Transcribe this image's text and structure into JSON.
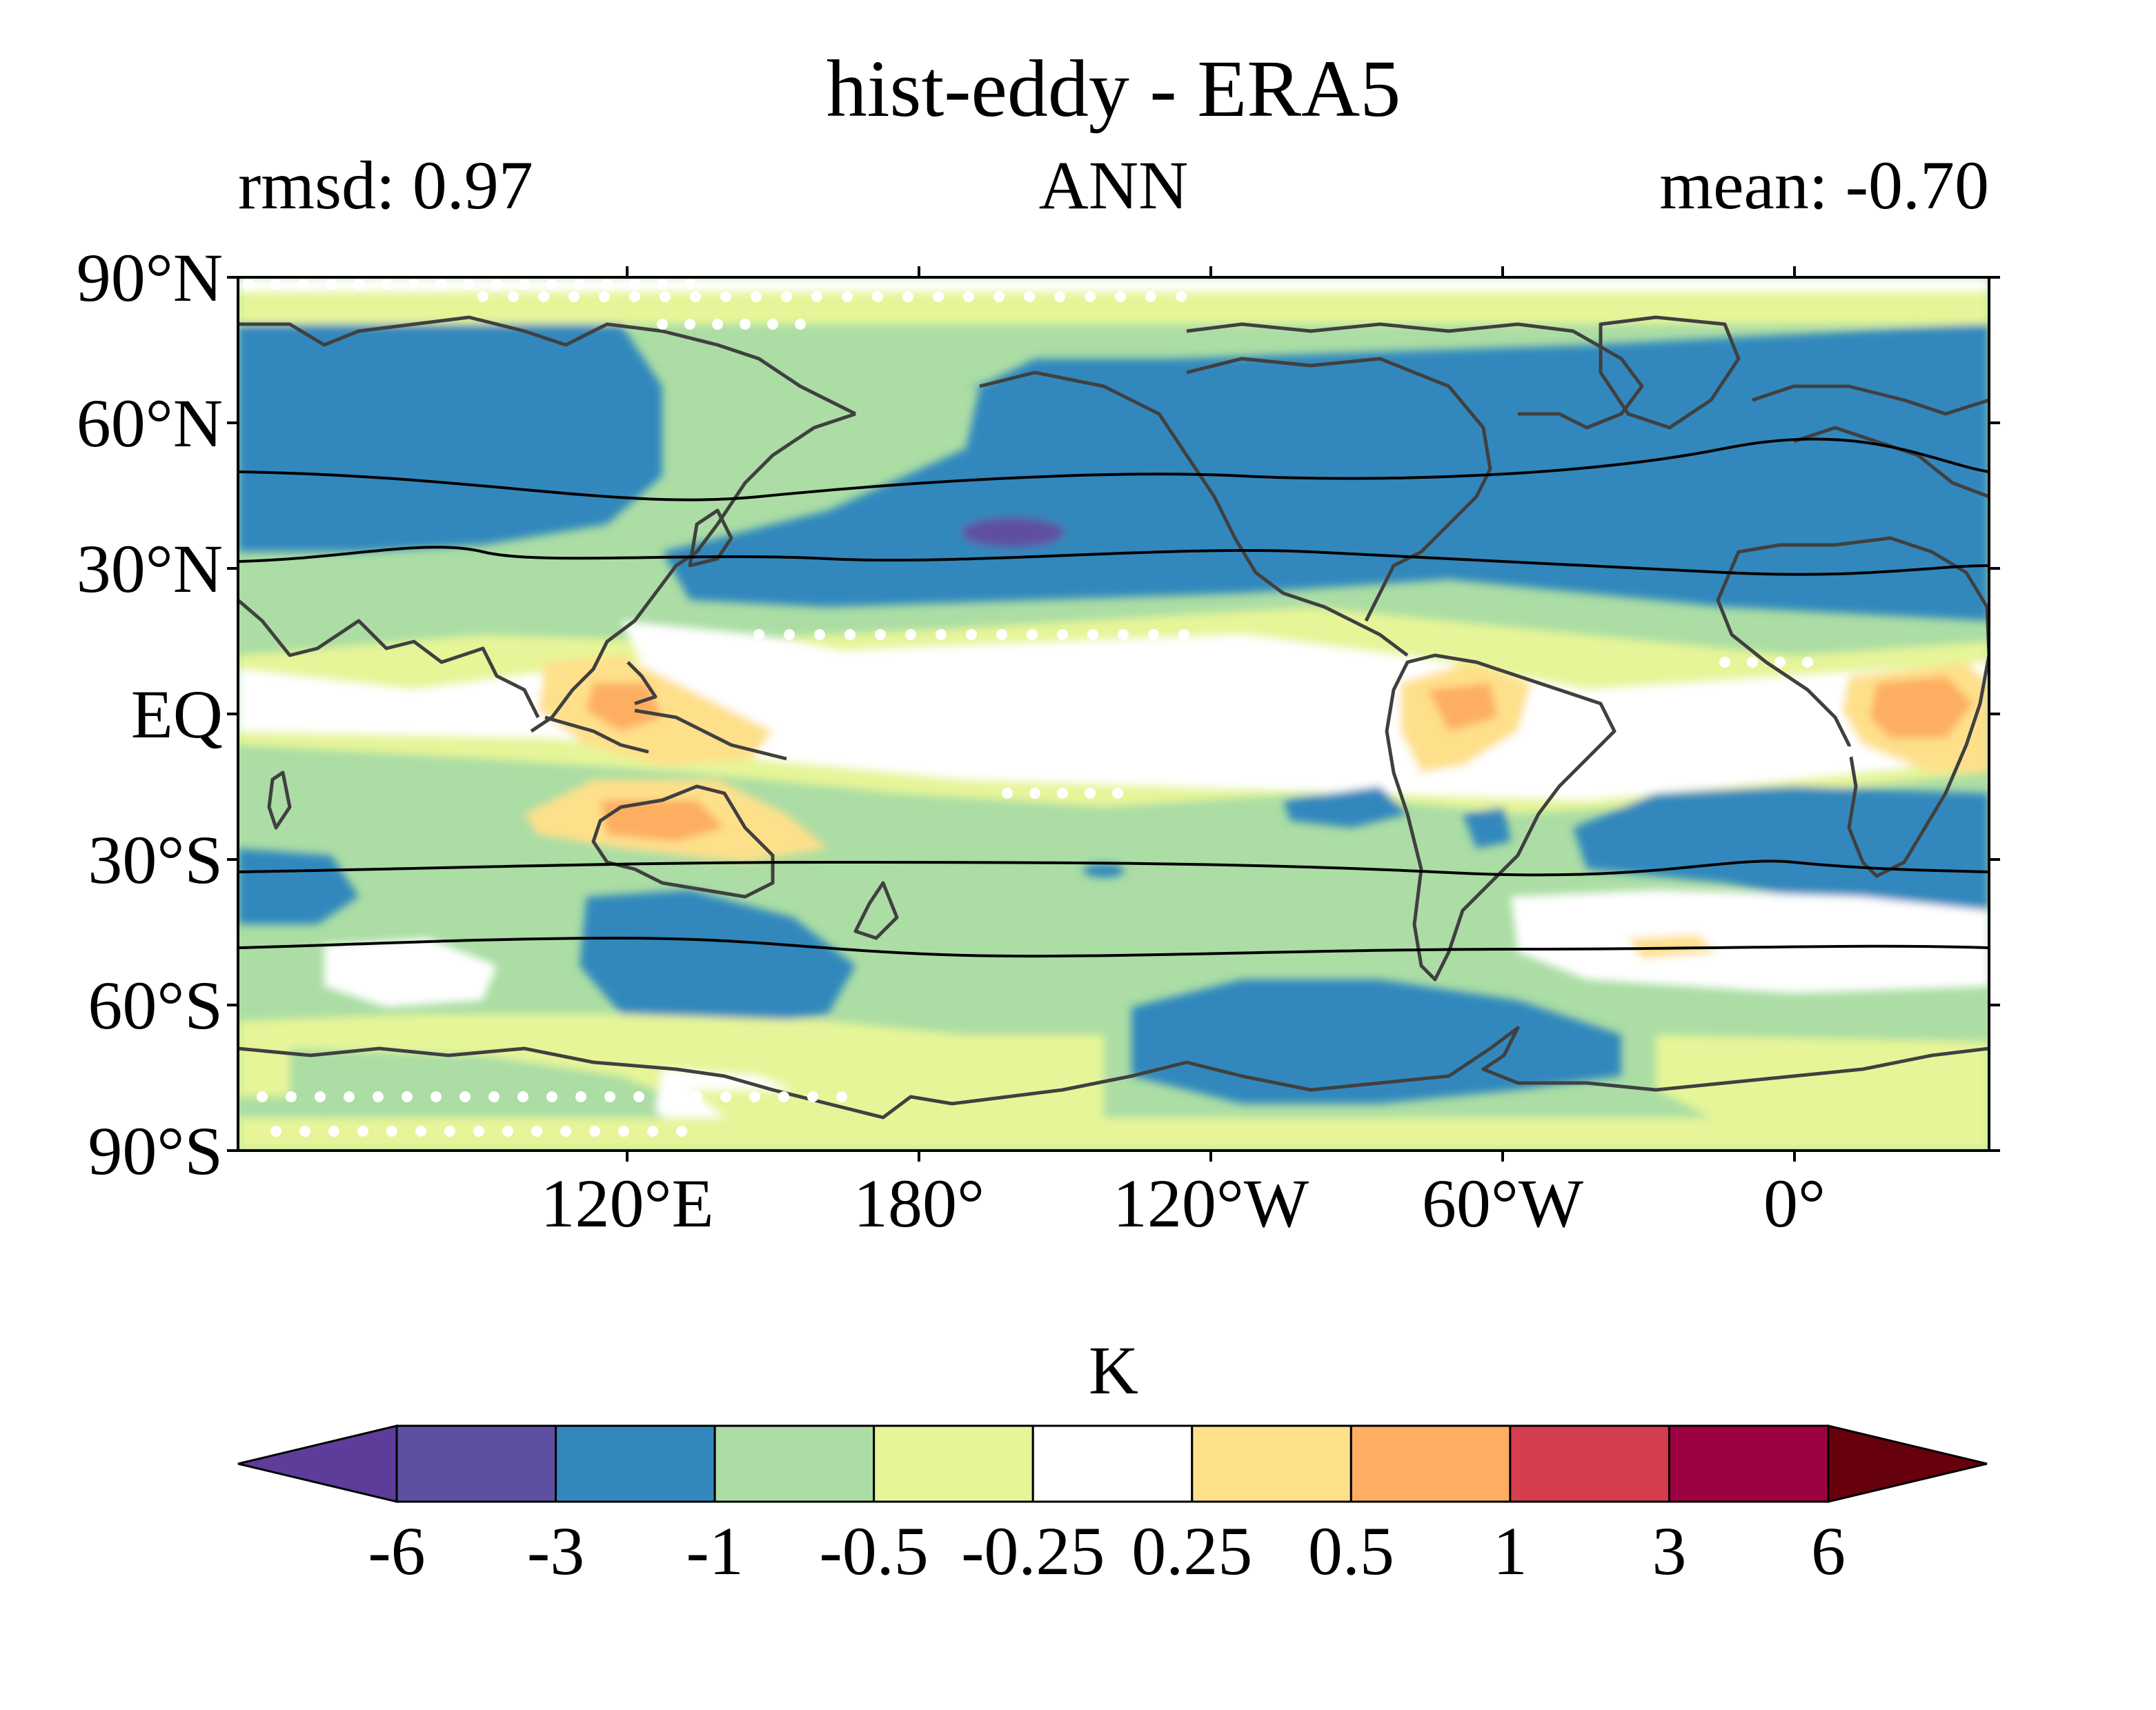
{
  "title": "hist-eddy - ERA5",
  "left_stat": "rmsd: 0.97",
  "center_label": "ANN",
  "right_stat": "mean: -0.70",
  "map": {
    "lat_ticks": [
      {
        "lat": 90,
        "label": "90°N"
      },
      {
        "lat": 60,
        "label": "60°N"
      },
      {
        "lat": 30,
        "label": "30°N"
      },
      {
        "lat": 0,
        "label": "EQ"
      },
      {
        "lat": -30,
        "label": "30°S"
      },
      {
        "lat": -60,
        "label": "60°S"
      },
      {
        "lat": -90,
        "label": "90°S"
      }
    ],
    "lon_ticks": [
      {
        "lon": 120,
        "label": "120°E"
      },
      {
        "lon": 180,
        "label": "180°"
      },
      {
        "lon": 240,
        "label": "120°W"
      },
      {
        "lon": 300,
        "label": "60°W"
      },
      {
        "lon": 360,
        "label": "0°"
      }
    ],
    "lon_range": [
      40,
      400
    ],
    "lat_range": [
      -90,
      90
    ]
  },
  "colorbar": {
    "units": "K",
    "tick_labels": [
      "-6",
      "-3",
      "-1",
      "-0.5",
      "-0.25",
      "0.25",
      "0.5",
      "1",
      "3",
      "6"
    ],
    "colors": {
      "under": "#5e3c99",
      "bins": [
        "#5e4fa2",
        "#3288bd",
        "#abdda4",
        "#e6f598",
        "#ffffff",
        "#fee08b",
        "#fdae61",
        "#d53e4f",
        "#9e0142"
      ],
      "over": "#67000d"
    }
  }
}
